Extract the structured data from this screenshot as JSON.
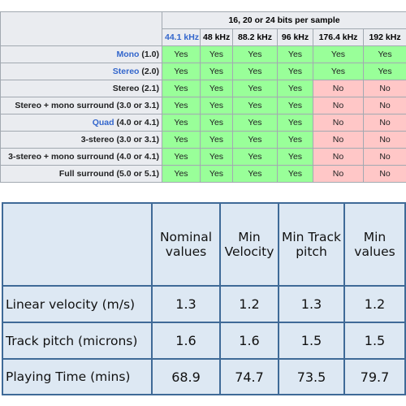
{
  "table1": {
    "group_header": "16, 20 or 24 bits per sample",
    "columns": [
      "44.1 kHz",
      "48 kHz",
      "88.2 kHz",
      "96 kHz",
      "176.4 kHz",
      "192 kHz"
    ],
    "rows": [
      {
        "name": "Mono",
        "suffix": " (1.0)",
        "link": true,
        "values": [
          "Yes",
          "Yes",
          "Yes",
          "Yes",
          "Yes",
          "Yes"
        ]
      },
      {
        "name": "Stereo",
        "suffix": " (2.0)",
        "link": true,
        "values": [
          "Yes",
          "Yes",
          "Yes",
          "Yes",
          "Yes",
          "Yes"
        ]
      },
      {
        "name": "Stereo",
        "suffix": " (2.1)",
        "link": false,
        "values": [
          "Yes",
          "Yes",
          "Yes",
          "Yes",
          "No",
          "No"
        ]
      },
      {
        "name": "Stereo + mono surround",
        "suffix": " (3.0 or 3.1)",
        "link": false,
        "values": [
          "Yes",
          "Yes",
          "Yes",
          "Yes",
          "No",
          "No"
        ]
      },
      {
        "name": "Quad",
        "suffix": " (4.0 or 4.1)",
        "link": true,
        "values": [
          "Yes",
          "Yes",
          "Yes",
          "Yes",
          "No",
          "No"
        ]
      },
      {
        "name": "3-stereo",
        "suffix": " (3.0 or 3.1)",
        "link": false,
        "values": [
          "Yes",
          "Yes",
          "Yes",
          "Yes",
          "No",
          "No"
        ]
      },
      {
        "name": "3-stereo + mono surround",
        "suffix": " (4.0 or 4.1)",
        "link": false,
        "values": [
          "Yes",
          "Yes",
          "Yes",
          "Yes",
          "No",
          "No"
        ]
      },
      {
        "name": "Full surround",
        "suffix": " (5.0 or 5.1)",
        "link": false,
        "values": [
          "Yes",
          "Yes",
          "Yes",
          "Yes",
          "No",
          "No"
        ]
      }
    ]
  },
  "table2": {
    "columns": [
      "Nominal values",
      "Min Velocity",
      "Min Track pitch",
      "Min values"
    ],
    "rows": [
      {
        "label": "Linear velocity (m/s)",
        "values": [
          "1.3",
          "1.2",
          "1.3",
          "1.2"
        ]
      },
      {
        "label": "Track pitch (microns)",
        "values": [
          "1.6",
          "1.6",
          "1.5",
          "1.5"
        ]
      },
      {
        "label": "Playing Time (mins)",
        "values": [
          "68.9",
          "74.7",
          "73.5",
          "79.7"
        ]
      }
    ]
  },
  "colors": {
    "yes": "#99ff99",
    "no": "#ffc7c7",
    "header_bg": "#eaecf0",
    "link": "#3366cc",
    "table2_bg": "#dde8f3",
    "table2_border": "#3f6a97"
  }
}
